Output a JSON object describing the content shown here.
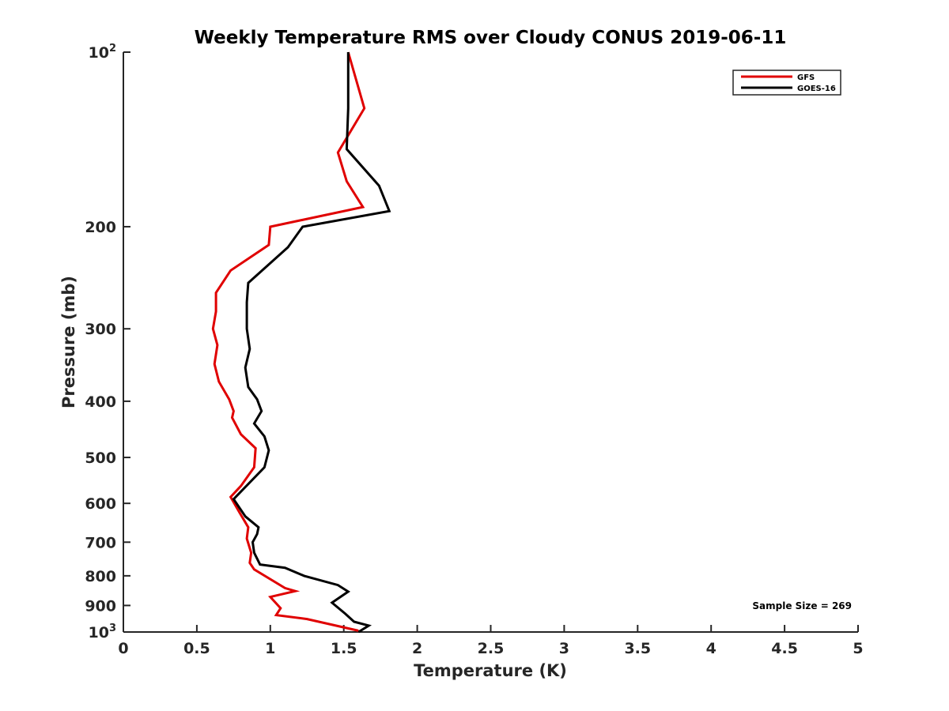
{
  "chart_data": {
    "type": "line",
    "title": "Weekly Temperature RMS over Cloudy CONUS 2019-06-11",
    "xlabel": "Temperature (K)",
    "ylabel": "Pressure (mb)",
    "xlim": [
      0,
      5
    ],
    "ylim": [
      100,
      1000
    ],
    "y_scale": "log",
    "y_reversed": true,
    "grid": false,
    "legend_position": "top-right",
    "x_ticks": [
      "0",
      "0.5",
      "1",
      "1.5",
      "2",
      "2.5",
      "3",
      "3.5",
      "4",
      "4.5",
      "5"
    ],
    "y_ticks": [
      {
        "value": 100,
        "label": "10",
        "sup": "2"
      },
      {
        "value": 200,
        "label": "200"
      },
      {
        "value": 300,
        "label": "300"
      },
      {
        "value": 400,
        "label": "400"
      },
      {
        "value": 500,
        "label": "500"
      },
      {
        "value": 600,
        "label": "600"
      },
      {
        "value": 700,
        "label": "700"
      },
      {
        "value": 800,
        "label": "800"
      },
      {
        "value": 900,
        "label": "900"
      },
      {
        "value": 1000,
        "label": "10",
        "sup": "3"
      }
    ],
    "series": [
      {
        "name": "GFS",
        "color": "#e00000",
        "points": [
          [
            1.53,
            100
          ],
          [
            1.64,
            125
          ],
          [
            1.46,
            149
          ],
          [
            1.52,
            167
          ],
          [
            1.63,
            185
          ],
          [
            1.0,
            200
          ],
          [
            0.99,
            215
          ],
          [
            0.73,
            238
          ],
          [
            0.63,
            260
          ],
          [
            0.63,
            280
          ],
          [
            0.61,
            300
          ],
          [
            0.64,
            320
          ],
          [
            0.62,
            345
          ],
          [
            0.65,
            370
          ],
          [
            0.72,
            397
          ],
          [
            0.75,
            416
          ],
          [
            0.74,
            427
          ],
          [
            0.8,
            456
          ],
          [
            0.9,
            482
          ],
          [
            0.89,
            520
          ],
          [
            0.8,
            560
          ],
          [
            0.73,
            585
          ],
          [
            0.79,
            622
          ],
          [
            0.85,
            660
          ],
          [
            0.84,
            690
          ],
          [
            0.87,
            730
          ],
          [
            0.86,
            760
          ],
          [
            0.89,
            780
          ],
          [
            1.1,
            840
          ],
          [
            1.17,
            850
          ],
          [
            1.0,
            870
          ],
          [
            1.07,
            910
          ],
          [
            1.04,
            935
          ],
          [
            1.25,
            950
          ],
          [
            1.6,
            995
          ]
        ]
      },
      {
        "name": "GOES-16",
        "color": "#000000",
        "points": [
          [
            1.53,
            100
          ],
          [
            1.53,
            125
          ],
          [
            1.52,
            147
          ],
          [
            1.74,
            170
          ],
          [
            1.81,
            188
          ],
          [
            1.22,
            200
          ],
          [
            1.12,
            217
          ],
          [
            0.85,
            250
          ],
          [
            0.84,
            270
          ],
          [
            0.84,
            300
          ],
          [
            0.86,
            325
          ],
          [
            0.83,
            350
          ],
          [
            0.85,
            378
          ],
          [
            0.91,
            397
          ],
          [
            0.94,
            416
          ],
          [
            0.89,
            437
          ],
          [
            0.96,
            460
          ],
          [
            0.99,
            486
          ],
          [
            0.96,
            520
          ],
          [
            0.75,
            590
          ],
          [
            0.83,
            632
          ],
          [
            0.92,
            660
          ],
          [
            0.91,
            678
          ],
          [
            0.88,
            700
          ],
          [
            0.89,
            730
          ],
          [
            0.93,
            765
          ],
          [
            1.1,
            775
          ],
          [
            1.23,
            800
          ],
          [
            1.46,
            830
          ],
          [
            1.53,
            852
          ],
          [
            1.42,
            890
          ],
          [
            1.51,
            930
          ],
          [
            1.57,
            960
          ],
          [
            1.67,
            975
          ],
          [
            1.6,
            1000
          ]
        ]
      }
    ],
    "annotation": "Sample Size = 269"
  }
}
